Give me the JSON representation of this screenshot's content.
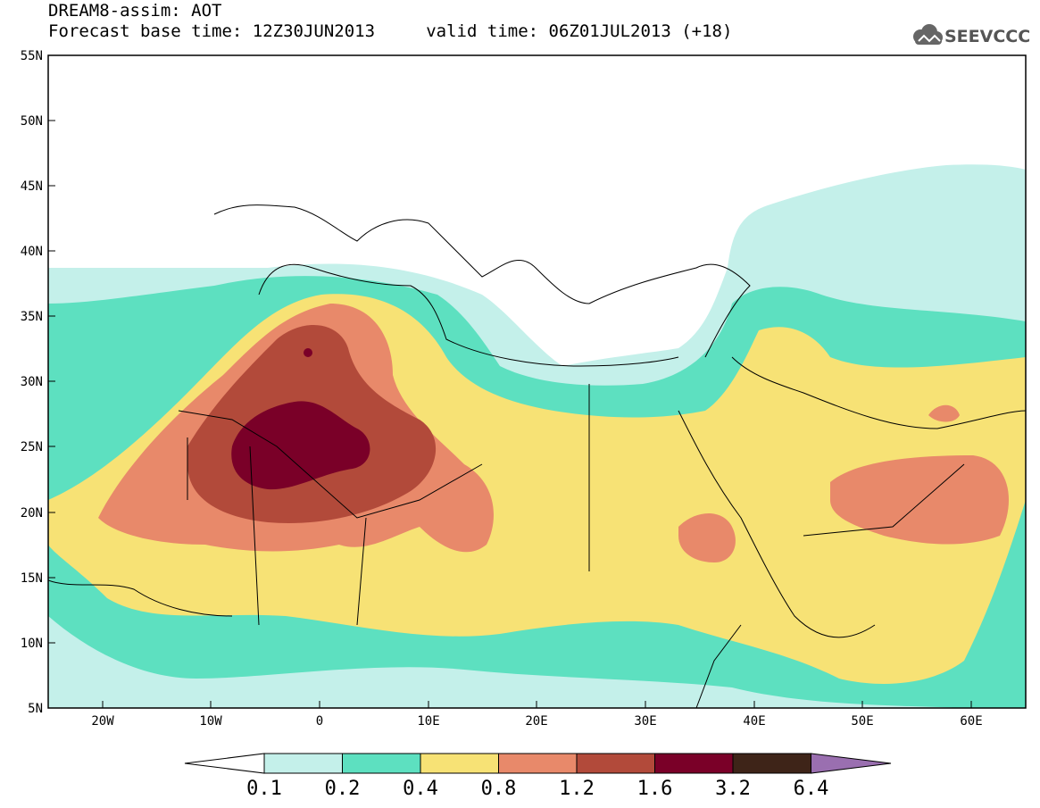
{
  "header": {
    "title_line1": "DREAM8-assim: AOT",
    "title_line2": "Forecast base time: 12Z30JUN2013     valid time: 06Z01JUL2013 (+18)",
    "logo_text": "SEEVCCC",
    "logo_icon": "cloud-icon"
  },
  "map": {
    "variable": "AOT",
    "lat_range": [
      5,
      55
    ],
    "lon_range": [
      -25,
      65
    ],
    "lat_labels": [
      "55N",
      "50N",
      "45N",
      "40N",
      "35N",
      "30N",
      "25N",
      "20N",
      "15N",
      "10N",
      "5N"
    ],
    "lon_labels": [
      "20W",
      "10W",
      "0",
      "10E",
      "20E",
      "30E",
      "40E",
      "50E",
      "60E"
    ]
  },
  "colorbar": {
    "labels": [
      "0.1",
      "0.2",
      "0.4",
      "0.8",
      "1.2",
      "1.6",
      "3.2",
      "6.4"
    ],
    "colors": [
      "#ffffff",
      "#c4f0ea",
      "#5de0c0",
      "#f7e275",
      "#e8896a",
      "#b24a3a",
      "#7a0028",
      "#3e2418",
      "#9a6fb0"
    ]
  }
}
